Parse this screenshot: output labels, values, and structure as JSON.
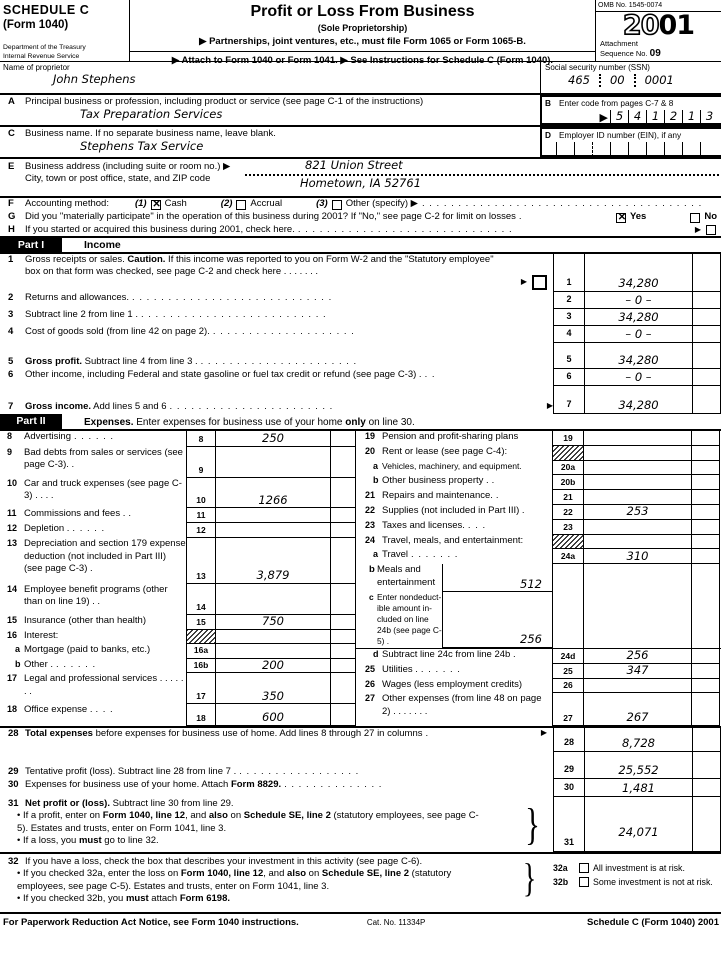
{
  "header": {
    "schedule": "SCHEDULE C",
    "form_no": "(Form 1040)",
    "dept1": "Department of the Treasury",
    "dept2": "Internal Revenue Service",
    "title": "Profit or Loss From Business",
    "subtitle": "(Sole Proprietorship)",
    "instr1": "▶ Partnerships, joint ventures, etc., must file Form 1065 or Form 1065-B.",
    "instr2": "▶ Attach to Form 1040 or Form 1041.     ▶ See Instructions for Schedule C (Form 1040).",
    "omb": "OMB No. 1545-0074",
    "year_outline": "20",
    "year_solid": "01",
    "attachment": "Attachment",
    "sequence": "Sequence No.",
    "sequence_no": "09"
  },
  "proprietor": {
    "label": "Name of proprietor",
    "name": "John Stephens",
    "ssn_label": "Social security number (SSN)",
    "ssn": [
      "465",
      "00",
      "0001"
    ]
  },
  "line_a": {
    "num": "A",
    "label": "Principal business or profession, including product or service (see page C-1 of the instructions)",
    "value": "Tax Preparation Services"
  },
  "line_b": {
    "num": "B",
    "label": "Enter code from pages C-7 & 8",
    "arrow": "▶",
    "digits": [
      "5",
      "4",
      "1",
      "2",
      "1",
      "3"
    ]
  },
  "line_c": {
    "num": "C",
    "label": "Business name. If no separate business name, leave blank.",
    "value": "Stephens Tax Service"
  },
  "line_d": {
    "num": "D",
    "label": "Employer ID number (EIN), if any"
  },
  "line_e": {
    "num": "E",
    "label1": "Business address (including suite or room no.)  ▶",
    "label2": "City, town or post office, state, and ZIP code",
    "street": "821 Union Street",
    "city": "Hometown, IA   52761"
  },
  "line_f": {
    "num": "F",
    "label": "Accounting method:",
    "options": [
      {
        "pre": "(1)",
        "label": "Cash",
        "checked": true
      },
      {
        "pre": "(2)",
        "label": "Accrual",
        "checked": false
      },
      {
        "pre": "(3)",
        "label": "Other (specify) ▶",
        "checked": false
      }
    ],
    "dotfill": ". . . . . . . . . . . . . . . . . . . . . . . . . . . . . . . . . . . . . . ."
  },
  "line_g": {
    "num": "G",
    "label": "Did you \"materially participate\" in the operation of this business during 2001? If \"No,\" see page C-2 for limit on losses",
    "dots": ".",
    "yes_label": "Yes",
    "yes_checked": true,
    "no_label": "No",
    "no_checked": false
  },
  "line_h": {
    "num": "H",
    "label": "If you started or acquired this business during 2001, check here.",
    "dots": ".  .  .  .  .  .  .  .  .  .  .  .  .  .  .  .  .  .  .  .  .  .  .  .  .  .  .  .  .  .",
    "arrow": "▶",
    "checked": false
  },
  "part1": {
    "tag": "Part I",
    "title": "Income",
    "rows": [
      {
        "num": "1",
        "segs": [
          {
            "t": "Gross receipts or sales. "
          },
          {
            "t": "Caution.",
            "b": true
          },
          {
            "t": " If this income was reported to you on Form W-2 and the \"Statutory employee\" box on that form was checked, see page C-2 and check here  .   .   .   .   .   .   ."
          }
        ],
        "arrow": "▶",
        "checkbox_checked": false,
        "amount": "34,280"
      },
      {
        "num": "2",
        "segs": [
          {
            "t": "Returns and allowances."
          }
        ],
        "dots": ".   .   .   .   .   .   .   .   .   .   .   .   .   .   .   .   .   .   .   .   .   .   .   .   .   .   .   .",
        "amount": "– 0 –"
      },
      {
        "num": "3",
        "segs": [
          {
            "t": "Subtract line 2 from line 1 ."
          }
        ],
        "dots": ".   .   .   .   .   .   .   .   .   .   .   .   .   .   .   .   .   .   .   .   .   .   .   .   .   .",
        "amount": "34,280"
      },
      {
        "num": "4",
        "segs": [
          {
            "t": "Cost of goods sold (from line 42 on page 2)."
          }
        ],
        "dots": ".   .   .   .   .   .   .   .   .   .   .   .   .   .   .   .   .   .   .   .",
        "amount": "– 0 –"
      },
      {
        "num": "5",
        "segs": [
          {
            "t": "Gross profit.",
            "b": true
          },
          {
            "t": " Subtract line 4 from line 3 ."
          }
        ],
        "dots": ".   .   .   .   .   .   .   .   .   .   .   .   .   .   .   .   .   .   .   .   .   .",
        "amount": "34,280"
      },
      {
        "num": "6",
        "segs": [
          {
            "t": "Other income, including Federal and state gasoline or fuel tax credit or refund (see page C-3)  ."
          }
        ],
        "dots": ".   .",
        "amount": "– 0 –"
      },
      {
        "num": "7",
        "segs": [
          {
            "t": "Gross income.",
            "b": true
          },
          {
            "t": " Add lines 5 and 6"
          }
        ],
        "dots": ".   .   .   .   .   .   .   .   .   .   .   .   .   .   .   .   .   .   .   .   .   .   .",
        "arrow": "▶",
        "amount": "34,280"
      }
    ]
  },
  "part2": {
    "tag": "Part II",
    "heading_segs": [
      {
        "t": "Expenses.",
        "b": true
      },
      {
        "t": " Enter expenses for business use of your home "
      },
      {
        "t": "only",
        "b": true
      },
      {
        "t": " on line 30."
      }
    ],
    "r8": {
      "num": "8",
      "label": "Advertising",
      "dots": ".    .    .    .    .    .",
      "amount": "250"
    },
    "r9": {
      "num": "9",
      "label": "Bad debts from sales or services (see page C-3).   .",
      "amount": ""
    },
    "r10": {
      "num": "10",
      "label": "Car and truck expenses (see page C-3)   .    .    .    .",
      "amount": "1266"
    },
    "r11": {
      "num": "11",
      "label": "Commissions and fees .",
      "dots": ".",
      "amount": ""
    },
    "r12": {
      "num": "12",
      "label": "Depletion .",
      "dots": ".    .    .    .    .",
      "amount": ""
    },
    "r13": {
      "num": "13",
      "label": "Depreciation and section 179 expense deduction (not included in Part III) (see page C-3)     .",
      "amount": "3,879"
    },
    "r14": {
      "num": "14",
      "label": "Employee benefit programs (other than on line 19)   .    .",
      "amount": ""
    },
    "r15": {
      "num": "15",
      "label": "Insurance (other than health)",
      "dots": "",
      "amount": "750"
    },
    "r16": {
      "num": "16",
      "label": "Interest:"
    },
    "r16a": {
      "num": "a",
      "box": "16a",
      "label": "Mortgage (paid to banks, etc.)",
      "dots": "",
      "amount": ""
    },
    "r16b": {
      "num": "b",
      "box": "16b",
      "label": "Other .",
      "dots": ".    .    .    .    .    .",
      "amount": "200"
    },
    "r17": {
      "num": "17",
      "label": "Legal and professional services   .    .    .    .    .    .    .",
      "amount": "350"
    },
    "r18": {
      "num": "18",
      "label": "Office expense .",
      "dots": ".    .    .",
      "amount": "600"
    },
    "r19": {
      "num": "19",
      "label": "Pension and profit-sharing plans",
      "dots": "",
      "amount": ""
    },
    "r20": {
      "num": "20",
      "label": "Rent or lease (see page C-4):"
    },
    "r20a": {
      "num": "a",
      "box": "20a",
      "label": "Vehicles, machinery, and equipment.",
      "dots": "",
      "amount": ""
    },
    "r20b": {
      "num": "b",
      "box": "20b",
      "label": "Other business property  .",
      "dots": ".",
      "amount": ""
    },
    "r21": {
      "num": "21",
      "label": "Repairs and maintenance.",
      "dots": ".",
      "amount": ""
    },
    "r22": {
      "num": "22",
      "label": "Supplies (not included in Part III) .",
      "dots": "",
      "amount": "253"
    },
    "r23": {
      "num": "23",
      "label": "Taxes and licenses.",
      "dots": ".    .    .",
      "amount": ""
    },
    "r24": {
      "num": "24",
      "label": "Travel, meals, and entertainment:"
    },
    "r24a": {
      "num": "a",
      "box": "24a",
      "label": "Travel",
      "dots": ".    .    .    .    .    .    .",
      "amount": "310"
    },
    "r24b": {
      "num": "b",
      "label": "Meals and entertainment",
      "amount": "512"
    },
    "r24c": {
      "num": "c",
      "label": "Enter nondeduct- ible amount in- cluded on line 24b (see page C-5) .",
      "amount": "256"
    },
    "r24d": {
      "num": "d",
      "box": "24d",
      "label": "Subtract line 24c from line 24b   .",
      "amount": "256"
    },
    "r25": {
      "num": "25",
      "label": "Utilities  .",
      "dots": ".    .    .    .    .    .",
      "amount": "347"
    },
    "r26": {
      "num": "26",
      "label": "Wages (less employment credits)",
      "amount": ""
    },
    "r27": {
      "num": "27",
      "label": "Other expenses (from line 48 on page 2)  .    .    .    .    .    .    .",
      "amount": "267"
    },
    "r28": {
      "num": "28",
      "segs": [
        {
          "t": "Total expenses",
          "b": true
        },
        {
          "t": " before expenses for business use of home. Add lines 8 through 27 in columns"
        }
      ],
      "dots": ".",
      "arrow": "▶",
      "amount": "8,728"
    },
    "r29": {
      "num": "29",
      "segs": [
        {
          "t": "Tentative profit (loss). Subtract line 28 from line 7 ."
        }
      ],
      "dots": ".   .   .   .   .   .   .   .   .   .   .   .   .   .   .   .   .",
      "amount": "25,552"
    },
    "r30": {
      "num": "30",
      "segs": [
        {
          "t": "Expenses for business use of your home. Attach "
        },
        {
          "t": "Form 8829.",
          "b": true
        }
      ],
      "dots": ".   .   .   .   .   .   .   .   .   .   .   .   .   .",
      "amount": "1,481"
    },
    "r31": {
      "num": "31",
      "segs": [
        {
          "t": "Net profit or (loss).",
          "b": true
        },
        {
          "t": " Subtract line 30 from line 29."
        }
      ],
      "bullet1_segs": [
        {
          "t": "• If a profit, enter on "
        },
        {
          "t": "Form 1040, line 12",
          "b": true
        },
        {
          "t": ", and "
        },
        {
          "t": "also",
          "b": true
        },
        {
          "t": " on "
        },
        {
          "t": "Schedule SE, line 2",
          "b": true
        },
        {
          "t": " (statutory employees, see page C-5). Estates and trusts, enter on Form 1041, line 3."
        }
      ],
      "bullet2_segs": [
        {
          "t": "• If a loss, you "
        },
        {
          "t": "must",
          "b": true
        },
        {
          "t": " go to line 32."
        }
      ],
      "amount": "24,071"
    },
    "r32": {
      "num": "32",
      "label": "If you have a loss, check the box that describes your investment in this activity (see page C-6).",
      "bullet1_segs": [
        {
          "t": "• If you checked 32a, enter the loss on "
        },
        {
          "t": "Form 1040, line 12",
          "b": true
        },
        {
          "t": ", and "
        },
        {
          "t": "also",
          "b": true
        },
        {
          "t": " on "
        },
        {
          "t": "Schedule SE, line 2",
          "b": true
        },
        {
          "t": " (statutory employees, see page C-5). Estates and trusts, enter on Form 1041, line 3."
        }
      ],
      "bullet2_segs": [
        {
          "t": "• If you checked 32b, you "
        },
        {
          "t": "must",
          "b": true
        },
        {
          "t": " attach "
        },
        {
          "t": "Form 6198.",
          "b": true
        }
      ],
      "a_num": "32a",
      "a_label": "All investment is at risk.",
      "a_checked": false,
      "b_num": "32b",
      "b_label": "Some investment is not at risk.",
      "b_checked": false
    }
  },
  "footer": {
    "left": "For Paperwork Reduction Act Notice, see Form 1040 instructions.",
    "cat": "Cat. No. 11334P",
    "right": "Schedule C (Form 1040) 2001"
  },
  "misc": {
    "brace": "}"
  }
}
